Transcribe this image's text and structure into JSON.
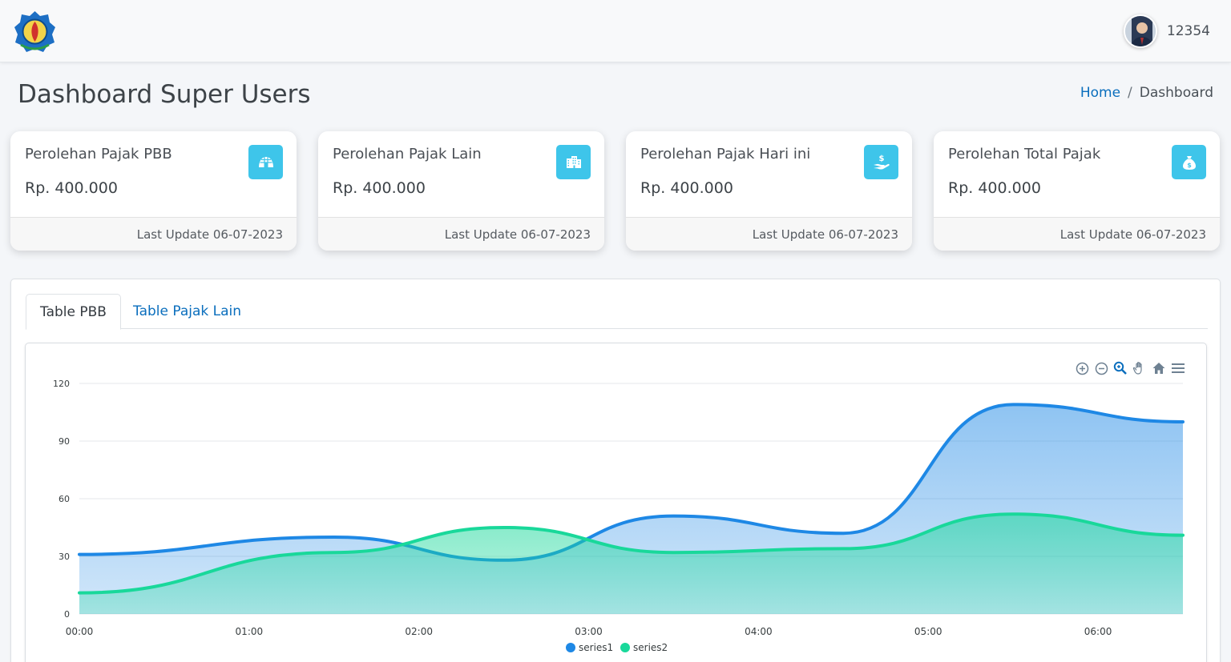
{
  "header": {
    "user_name": "12354"
  },
  "page": {
    "title": "Dashboard Super Users",
    "breadcrumb": {
      "home": "Home",
      "separator": "/",
      "current": "Dashboard"
    }
  },
  "cards": [
    {
      "label": "Perolehan Pajak PBB",
      "value": "Rp. 400.000",
      "footer": "Last Update 06-07-2023",
      "icon": "igloo-icon"
    },
    {
      "label": "Perolehan Pajak Lain",
      "value": "Rp. 400.000",
      "footer": "Last Update 06-07-2023",
      "icon": "building-icon"
    },
    {
      "label": "Perolehan Pajak Hari ini",
      "value": "Rp. 400.000",
      "footer": "Last Update 06-07-2023",
      "icon": "hand-holding-dollar-icon"
    },
    {
      "label": "Perolehan Total Pajak",
      "value": "Rp. 400.000",
      "footer": "Last Update 06-07-2023",
      "icon": "money-bag-icon"
    }
  ],
  "tabs": [
    {
      "label": "Table PBB",
      "active": true
    },
    {
      "label": "Table Pajak Lain",
      "active": false
    }
  ],
  "toolbar": [
    "zoom-in-icon",
    "zoom-out-icon",
    "selection-zoom-icon",
    "pan-icon",
    "reset-home-icon",
    "menu-icon"
  ],
  "colors": {
    "accent": "#3ec5ea",
    "series1": "#1e88e5",
    "series2": "#19d89a",
    "link": "#0a6ebd"
  },
  "chart_data": {
    "type": "area",
    "x": [
      "00:00",
      "01:00",
      "02:00",
      "03:00",
      "04:00",
      "05:00",
      "06:00"
    ],
    "x_points": [
      0,
      1.5,
      2.5,
      3.5,
      4.5,
      5.5,
      6.5
    ],
    "series": [
      {
        "name": "series1",
        "values": [
          31,
          40,
          28,
          51,
          42,
          109,
          100
        ]
      },
      {
        "name": "series2",
        "values": [
          11,
          32,
          45,
          32,
          34,
          52,
          41
        ]
      }
    ],
    "yticks": [
      "0",
      "30",
      "60",
      "90",
      "120"
    ],
    "ylim": [
      0,
      120
    ],
    "grid": true,
    "legend": "bottom-center"
  }
}
